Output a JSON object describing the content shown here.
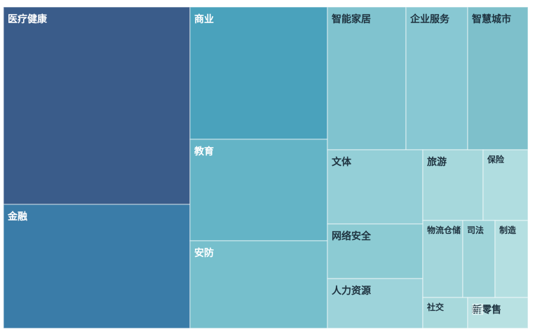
{
  "chart_data": {
    "type": "treemap",
    "items": [
      {
        "name": "医疗健康",
        "value": 1120,
        "color": "#3a5c8a"
      },
      {
        "name": "金融",
        "value": 810,
        "color": "#3a7ca8"
      },
      {
        "name": "商业",
        "value": 570,
        "color": "#4aa2bc"
      },
      {
        "name": "教育",
        "value": 440,
        "color": "#64b4c6"
      },
      {
        "name": "安防",
        "value": 390,
        "color": "#76bfcc"
      },
      {
        "name": "智能家居",
        "value": 235,
        "color": "#80c3cf"
      },
      {
        "name": "企业服务",
        "value": 175,
        "color": "#88c8d3"
      },
      {
        "name": "智慧城市",
        "value": 175,
        "color": "#7ec0cb"
      },
      {
        "name": "文体",
        "value": 160,
        "color": "#94cfd7"
      },
      {
        "name": "网络安全",
        "value": 80,
        "color": "#8ccbd3"
      },
      {
        "name": "人力资源",
        "value": 85,
        "color": "#9dd3da"
      },
      {
        "name": "旅游",
        "value": 70,
        "color": "#a6d8dc"
      },
      {
        "name": "保险",
        "value": 55,
        "color": "#b0dde0"
      },
      {
        "name": "物流仓储",
        "value": 50,
        "color": "#a3d6db"
      },
      {
        "name": "司法",
        "value": 38,
        "color": "#9fd4d9"
      },
      {
        "name": "制造",
        "value": 38,
        "color": "#b4dfe1"
      },
      {
        "name": "社交",
        "value": 28,
        "color": "#a8d9dc"
      },
      {
        "name": "新零售",
        "value": 28,
        "color": "#b8e1e2"
      }
    ]
  },
  "watermark": {
    "text": "智东西"
  }
}
